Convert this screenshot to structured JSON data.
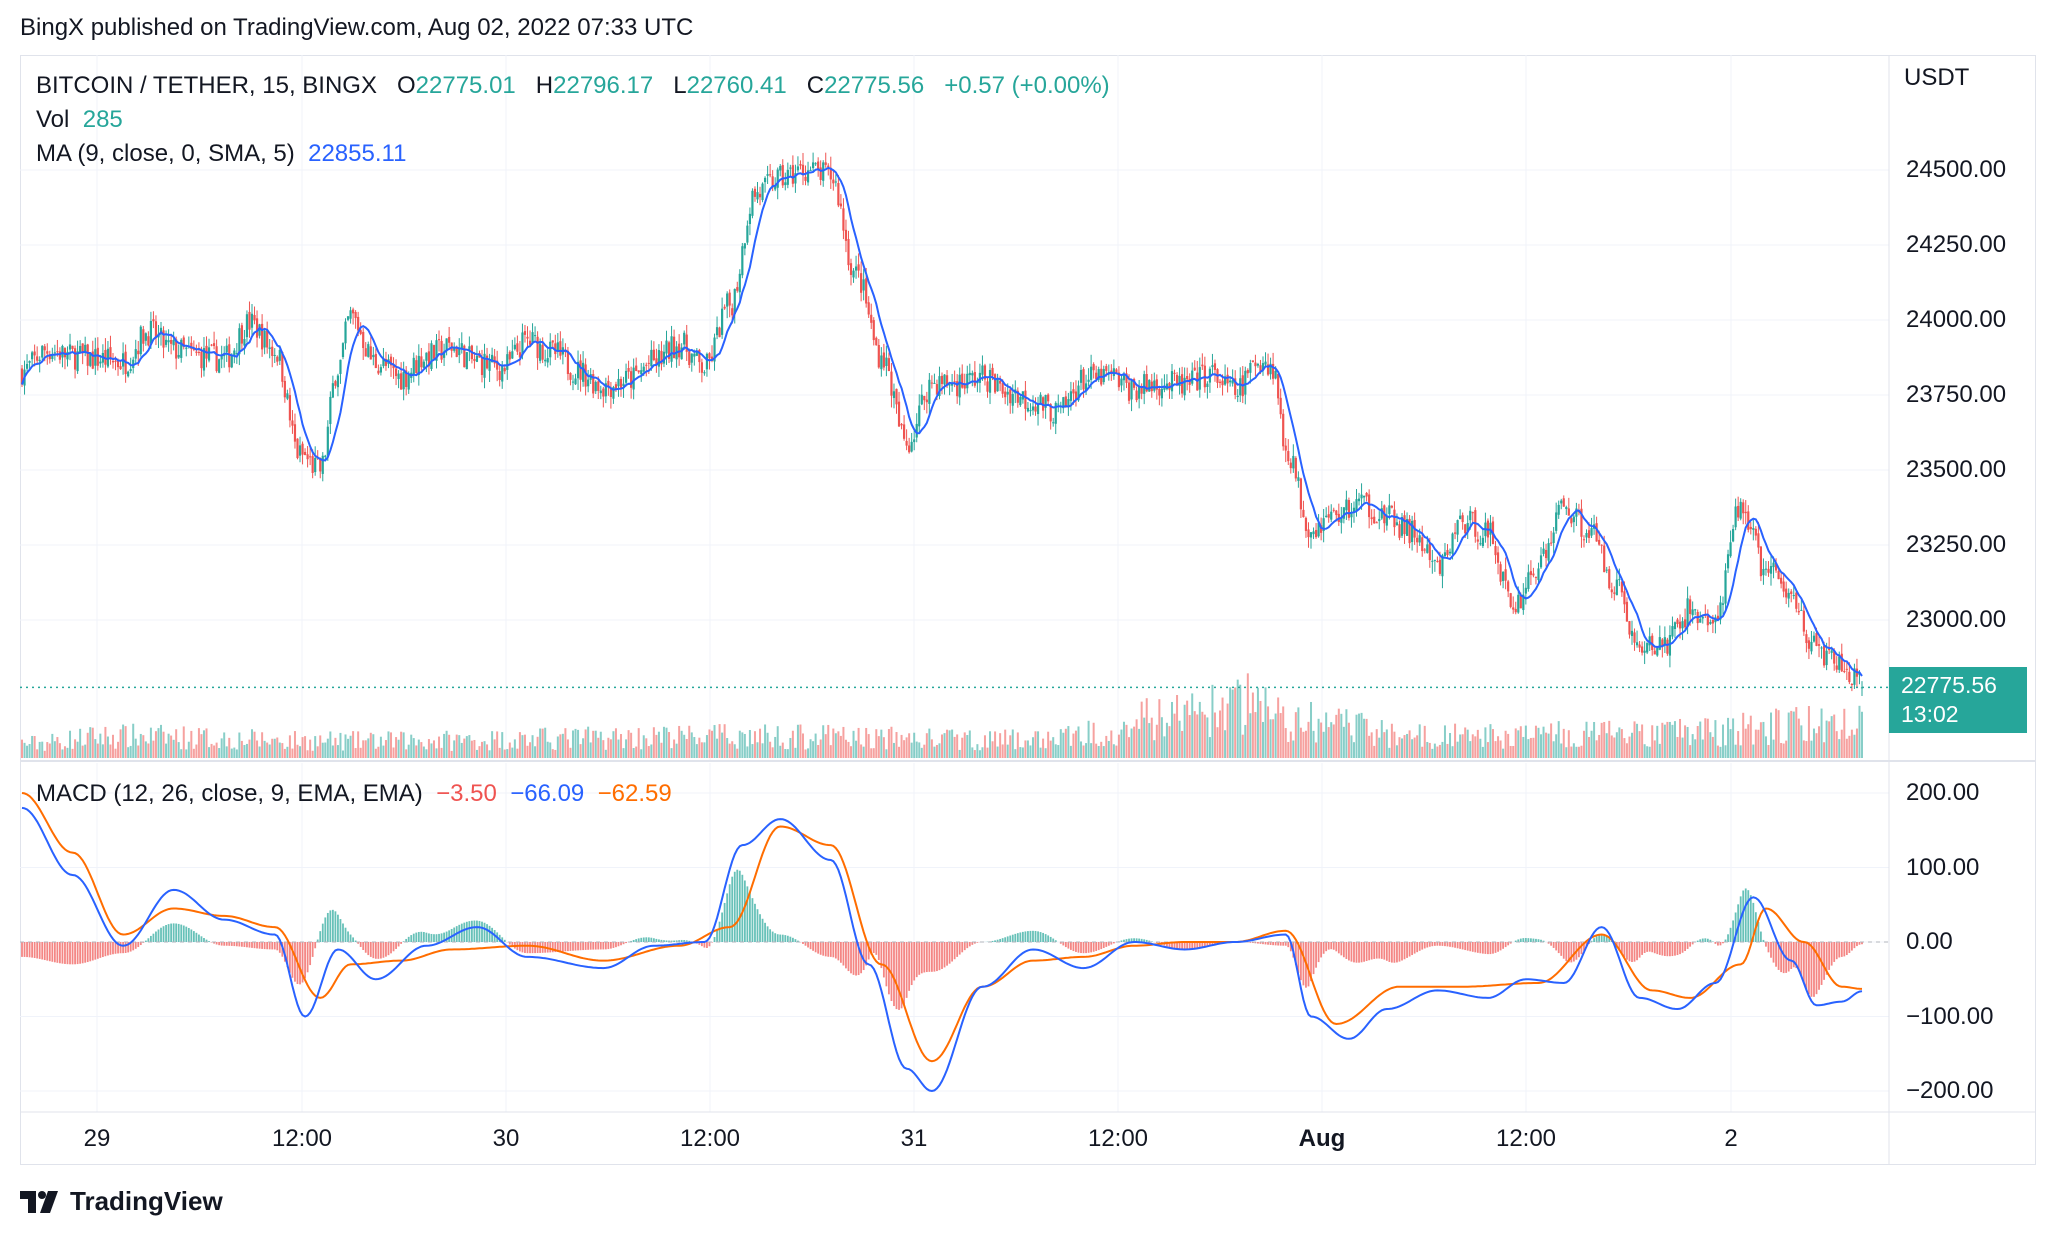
{
  "publisher_line": "BingX published on TradingView.com, Aug 02, 2022 07:33 UTC",
  "footer": {
    "brand": "TradingView",
    "logo_icon": "tradingview-logo-icon"
  },
  "legend": {
    "symbol": "BITCOIN / TETHER, 15, BINGX",
    "o_label": "O",
    "o_value": "22775.01",
    "h_label": "H",
    "h_value": "22796.17",
    "l_label": "L",
    "l_value": "22760.41",
    "c_label": "C",
    "c_value": "22775.56",
    "change": "+0.57 (+0.00%)",
    "vol_label": "Vol",
    "vol_value": "285",
    "ma_label": "MA (9, close, 0, SMA, 5)",
    "ma_value": "22855.11",
    "macd_label": "MACD (12, 26, close, 9, EMA, EMA)",
    "macd_hist": "−3.50",
    "macd_line": "−66.09",
    "macd_signal": "−62.59"
  },
  "price_axis": {
    "unit": "USDT",
    "ticks": [
      "24500.00",
      "24250.00",
      "24000.00",
      "23750.00",
      "23500.00",
      "23250.00",
      "23000.00"
    ],
    "tick_values": [
      24500,
      24250,
      24000,
      23750,
      23500,
      23250,
      23000
    ]
  },
  "macd_axis": {
    "ticks": [
      "200.00",
      "100.00",
      "0.00",
      "−100.00",
      "−200.00"
    ],
    "tick_values": [
      200,
      100,
      0,
      -100,
      -200
    ]
  },
  "last_price": {
    "price": "22775.56",
    "countdown": "13:02"
  },
  "time_axis": {
    "labels": [
      "29",
      "12:00",
      "30",
      "12:00",
      "31",
      "12:00",
      "Aug",
      "12:00",
      "2"
    ],
    "bold": [
      false,
      false,
      false,
      false,
      false,
      false,
      true,
      false,
      false
    ]
  },
  "colors": {
    "up": "#26a69a",
    "down": "#ef5350",
    "ma": "#2962ff",
    "macd": "#2962ff",
    "signal": "#ff6d00",
    "grid": "#f0f3fa"
  },
  "chart_data": {
    "type": "candlestick",
    "symbol": "BITCOIN / TETHER",
    "interval": "15",
    "exchange": "BINGX",
    "x_range": [
      "Jul 28",
      "Aug 2"
    ],
    "ylim": [
      22700,
      24800
    ],
    "macd_ylim": [
      -230,
      230
    ],
    "price_anchors": [
      [
        0,
        23830
      ],
      [
        10,
        23900
      ],
      [
        20,
        23880
      ],
      [
        30,
        23870
      ],
      [
        40,
        23860
      ],
      [
        50,
        23960
      ],
      [
        60,
        23900
      ],
      [
        70,
        23880
      ],
      [
        80,
        23870
      ],
      [
        90,
        23990
      ],
      [
        100,
        23900
      ],
      [
        110,
        23550
      ],
      [
        118,
        23500
      ],
      [
        125,
        23840
      ],
      [
        130,
        24010
      ],
      [
        140,
        23860
      ],
      [
        150,
        23810
      ],
      [
        160,
        23880
      ],
      [
        170,
        23910
      ],
      [
        180,
        23860
      ],
      [
        190,
        23840
      ],
      [
        200,
        23930
      ],
      [
        210,
        23890
      ],
      [
        220,
        23830
      ],
      [
        230,
        23780
      ],
      [
        240,
        23800
      ],
      [
        250,
        23860
      ],
      [
        260,
        23920
      ],
      [
        270,
        23840
      ],
      [
        280,
        24050
      ],
      [
        290,
        24420
      ],
      [
        300,
        24470
      ],
      [
        310,
        24500
      ],
      [
        320,
        24480
      ],
      [
        330,
        24150
      ],
      [
        340,
        23880
      ],
      [
        350,
        23590
      ],
      [
        360,
        23790
      ],
      [
        370,
        23790
      ],
      [
        380,
        23810
      ],
      [
        390,
        23760
      ],
      [
        400,
        23730
      ],
      [
        410,
        23690
      ],
      [
        420,
        23800
      ],
      [
        430,
        23810
      ],
      [
        440,
        23770
      ],
      [
        450,
        23790
      ],
      [
        460,
        23780
      ],
      [
        470,
        23820
      ],
      [
        480,
        23760
      ],
      [
        490,
        23870
      ],
      [
        495,
        23840
      ],
      [
        500,
        23570
      ],
      [
        510,
        23310
      ],
      [
        520,
        23350
      ],
      [
        530,
        23390
      ],
      [
        540,
        23340
      ],
      [
        550,
        23290
      ],
      [
        560,
        23170
      ],
      [
        570,
        23330
      ],
      [
        580,
        23290
      ],
      [
        590,
        23050
      ],
      [
        600,
        23180
      ],
      [
        610,
        23380
      ],
      [
        620,
        23300
      ],
      [
        630,
        23130
      ],
      [
        640,
        22900
      ],
      [
        650,
        22920
      ],
      [
        660,
        23030
      ],
      [
        670,
        22990
      ],
      [
        680,
        23380
      ],
      [
        690,
        23170
      ],
      [
        700,
        23080
      ],
      [
        710,
        22900
      ],
      [
        720,
        22840
      ],
      [
        728,
        22780
      ]
    ],
    "volume_anchors": [
      [
        0,
        120
      ],
      [
        36,
        180
      ],
      [
        126,
        140
      ],
      [
        290,
        180
      ],
      [
        396,
        150
      ],
      [
        478,
        400
      ],
      [
        488,
        500
      ],
      [
        500,
        300
      ],
      [
        560,
        180
      ],
      [
        640,
        200
      ],
      [
        728,
        285
      ]
    ],
    "macd_anchors": [
      [
        0,
        180
      ],
      [
        20,
        90
      ],
      [
        40,
        -5
      ],
      [
        60,
        70
      ],
      [
        80,
        30
      ],
      [
        100,
        10
      ],
      [
        112,
        -100
      ],
      [
        125,
        -10
      ],
      [
        140,
        -50
      ],
      [
        160,
        -5
      ],
      [
        180,
        20
      ],
      [
        200,
        -20
      ],
      [
        230,
        -35
      ],
      [
        250,
        -5
      ],
      [
        270,
        0
      ],
      [
        285,
        130
      ],
      [
        300,
        165
      ],
      [
        320,
        110
      ],
      [
        335,
        -30
      ],
      [
        350,
        -170
      ],
      [
        360,
        -200
      ],
      [
        380,
        -60
      ],
      [
        400,
        -10
      ],
      [
        420,
        -35
      ],
      [
        440,
        0
      ],
      [
        460,
        -10
      ],
      [
        480,
        0
      ],
      [
        500,
        10
      ],
      [
        510,
        -100
      ],
      [
        525,
        -130
      ],
      [
        540,
        -90
      ],
      [
        560,
        -65
      ],
      [
        580,
        -75
      ],
      [
        595,
        -50
      ],
      [
        610,
        -55
      ],
      [
        625,
        20
      ],
      [
        640,
        -75
      ],
      [
        655,
        -90
      ],
      [
        670,
        -55
      ],
      [
        685,
        60
      ],
      [
        700,
        -25
      ],
      [
        710,
        -85
      ],
      [
        720,
        -80
      ],
      [
        728,
        -66
      ]
    ],
    "signal_anchors": [
      [
        0,
        200
      ],
      [
        20,
        120
      ],
      [
        40,
        10
      ],
      [
        60,
        45
      ],
      [
        80,
        35
      ],
      [
        100,
        20
      ],
      [
        118,
        -75
      ],
      [
        130,
        -30
      ],
      [
        150,
        -25
      ],
      [
        170,
        -10
      ],
      [
        200,
        -5
      ],
      [
        230,
        -25
      ],
      [
        260,
        -5
      ],
      [
        280,
        20
      ],
      [
        300,
        155
      ],
      [
        320,
        130
      ],
      [
        340,
        -30
      ],
      [
        360,
        -160
      ],
      [
        380,
        -60
      ],
      [
        400,
        -25
      ],
      [
        420,
        -20
      ],
      [
        440,
        -5
      ],
      [
        460,
        0
      ],
      [
        480,
        0
      ],
      [
        500,
        15
      ],
      [
        520,
        -110
      ],
      [
        545,
        -60
      ],
      [
        570,
        -60
      ],
      [
        600,
        -55
      ],
      [
        625,
        10
      ],
      [
        645,
        -65
      ],
      [
        660,
        -75
      ],
      [
        680,
        -30
      ],
      [
        690,
        45
      ],
      [
        705,
        0
      ],
      [
        720,
        -60
      ],
      [
        728,
        -63
      ]
    ]
  }
}
